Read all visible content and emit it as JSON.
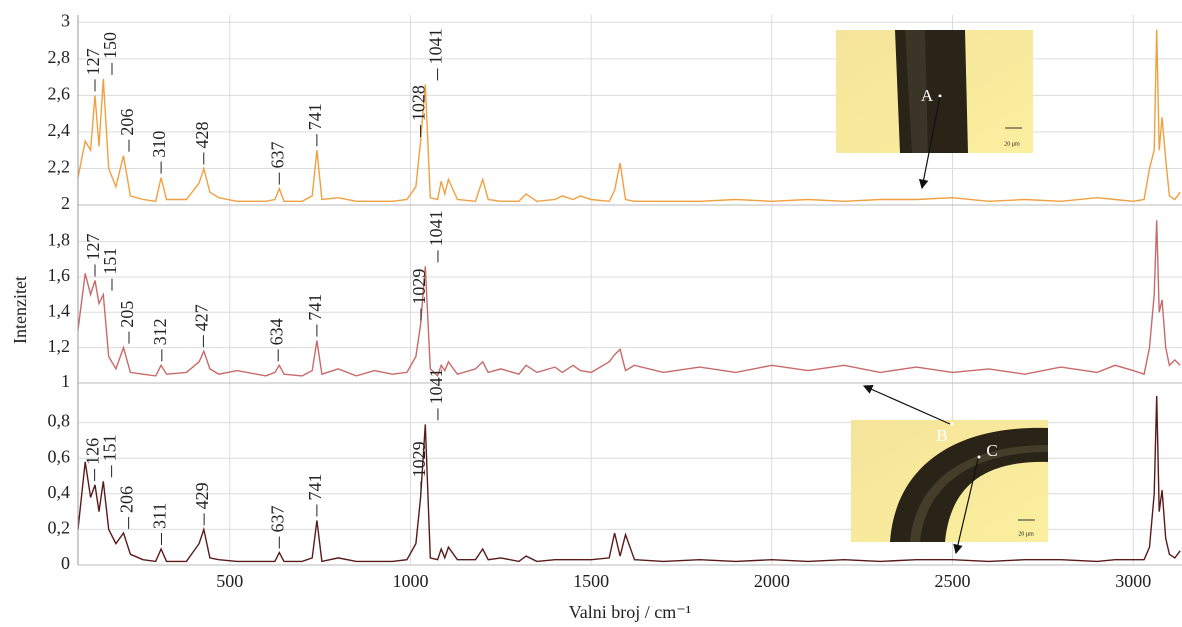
{
  "chart_data": {
    "type": "line",
    "xlabel": "Valni broj / cm⁻¹",
    "ylabel": "Intenzitet",
    "xlim": [
      80,
      3135
    ],
    "xticks": [
      500,
      1000,
      1500,
      2000,
      2500,
      3000
    ],
    "grid": true,
    "x": [
      80,
      100,
      115,
      127,
      138,
      150,
      165,
      185,
      206,
      225,
      260,
      295,
      310,
      325,
      380,
      415,
      428,
      445,
      470,
      520,
      600,
      625,
      637,
      650,
      700,
      728,
      741,
      755,
      800,
      850,
      900,
      950,
      990,
      1015,
      1028,
      1041,
      1055,
      1075,
      1085,
      1095,
      1105,
      1130,
      1180,
      1200,
      1215,
      1250,
      1300,
      1320,
      1350,
      1400,
      1420,
      1450,
      1470,
      1500,
      1550,
      1565,
      1580,
      1595,
      1620,
      1700,
      1800,
      1900,
      2000,
      2100,
      2200,
      2300,
      2400,
      2500,
      2600,
      2700,
      2800,
      2900,
      2950,
      3000,
      3030,
      3045,
      3058,
      3065,
      3072,
      3080,
      3090,
      3100,
      3115,
      3130
    ],
    "panels": [
      {
        "color": "#f0a040",
        "ylim": [
          2,
          3.04
        ],
        "yticks": [
          2,
          {
            "value": 2.2,
            "label": "2,2"
          },
          {
            "value": 2.4,
            "label": "2,4"
          },
          {
            "value": 2.6,
            "label": "2,6"
          },
          {
            "value": 2.8,
            "label": "2,8"
          },
          3
        ],
        "peaks": [
          127,
          150,
          206,
          310,
          428,
          637,
          741,
          1028,
          1041
        ],
        "values": [
          2.15,
          2.35,
          2.3,
          2.6,
          2.32,
          2.69,
          2.2,
          2.1,
          2.27,
          2.05,
          2.03,
          2.02,
          2.15,
          2.03,
          2.03,
          2.12,
          2.2,
          2.07,
          2.04,
          2.02,
          2.02,
          2.03,
          2.09,
          2.02,
          2.02,
          2.05,
          2.3,
          2.03,
          2.04,
          2.02,
          2.02,
          2.02,
          2.03,
          2.1,
          2.35,
          2.66,
          2.04,
          2.03,
          2.13,
          2.06,
          2.14,
          2.03,
          2.02,
          2.14,
          2.03,
          2.02,
          2.02,
          2.06,
          2.02,
          2.03,
          2.05,
          2.03,
          2.05,
          2.03,
          2.02,
          2.08,
          2.23,
          2.03,
          2.02,
          2.02,
          2.02,
          2.03,
          2.02,
          2.03,
          2.02,
          2.03,
          2.03,
          2.04,
          2.02,
          2.03,
          2.02,
          2.04,
          2.03,
          2.02,
          2.03,
          2.2,
          2.3,
          2.96,
          2.3,
          2.48,
          2.25,
          2.05,
          2.03,
          2.07
        ]
      },
      {
        "color": "#c86a6a",
        "ylim": [
          1,
          1.99
        ],
        "yticks": [
          1,
          {
            "value": 1.2,
            "label": "1,2"
          },
          {
            "value": 1.4,
            "label": "1,4"
          },
          {
            "value": 1.6,
            "label": "1,6"
          },
          {
            "value": 1.8,
            "label": "1,8"
          }
        ],
        "peaks": [
          127,
          151,
          205,
          312,
          427,
          634,
          741,
          1029,
          1041
        ],
        "values": [
          1.3,
          1.62,
          1.5,
          1.58,
          1.45,
          1.5,
          1.15,
          1.08,
          1.2,
          1.06,
          1.05,
          1.04,
          1.1,
          1.05,
          1.06,
          1.12,
          1.18,
          1.08,
          1.05,
          1.07,
          1.04,
          1.06,
          1.1,
          1.05,
          1.04,
          1.07,
          1.24,
          1.05,
          1.08,
          1.04,
          1.07,
          1.05,
          1.06,
          1.15,
          1.33,
          1.66,
          1.08,
          1.04,
          1.1,
          1.07,
          1.12,
          1.05,
          1.08,
          1.12,
          1.06,
          1.08,
          1.05,
          1.1,
          1.06,
          1.09,
          1.06,
          1.1,
          1.07,
          1.06,
          1.12,
          1.16,
          1.19,
          1.07,
          1.1,
          1.06,
          1.09,
          1.06,
          1.1,
          1.07,
          1.1,
          1.06,
          1.09,
          1.06,
          1.08,
          1.05,
          1.09,
          1.06,
          1.1,
          1.07,
          1.05,
          1.2,
          1.5,
          1.92,
          1.4,
          1.47,
          1.2,
          1.1,
          1.13,
          1.1
        ]
      },
      {
        "color": "#5a1a1a",
        "ylim": [
          0,
          1.0
        ],
        "yticks": [
          0,
          {
            "value": 0.2,
            "label": "0,2"
          },
          {
            "value": 0.4,
            "label": "0,4"
          },
          {
            "value": 0.6,
            "label": "0,6"
          },
          {
            "value": 0.8,
            "label": "0,8"
          }
        ],
        "peaks": [
          126,
          151,
          206,
          311,
          429,
          637,
          741,
          1029,
          1041
        ],
        "values": [
          0.2,
          0.58,
          0.38,
          0.45,
          0.3,
          0.47,
          0.2,
          0.12,
          0.18,
          0.06,
          0.03,
          0.02,
          0.09,
          0.02,
          0.02,
          0.12,
          0.2,
          0.04,
          0.03,
          0.02,
          0.02,
          0.02,
          0.07,
          0.02,
          0.02,
          0.04,
          0.25,
          0.02,
          0.04,
          0.02,
          0.02,
          0.02,
          0.03,
          0.12,
          0.38,
          0.79,
          0.04,
          0.03,
          0.09,
          0.04,
          0.1,
          0.03,
          0.03,
          0.09,
          0.03,
          0.04,
          0.02,
          0.05,
          0.02,
          0.03,
          0.03,
          0.03,
          0.03,
          0.03,
          0.04,
          0.18,
          0.05,
          0.17,
          0.03,
          0.02,
          0.03,
          0.02,
          0.03,
          0.02,
          0.03,
          0.02,
          0.03,
          0.03,
          0.02,
          0.03,
          0.03,
          0.02,
          0.03,
          0.03,
          0.03,
          0.1,
          0.4,
          0.95,
          0.3,
          0.42,
          0.15,
          0.06,
          0.04,
          0.08
        ]
      }
    ],
    "insets": [
      {
        "labels": [
          "A"
        ],
        "scale": "20 µm"
      },
      {
        "labels": [
          "B",
          "C"
        ],
        "scale": "20 µm"
      }
    ]
  }
}
